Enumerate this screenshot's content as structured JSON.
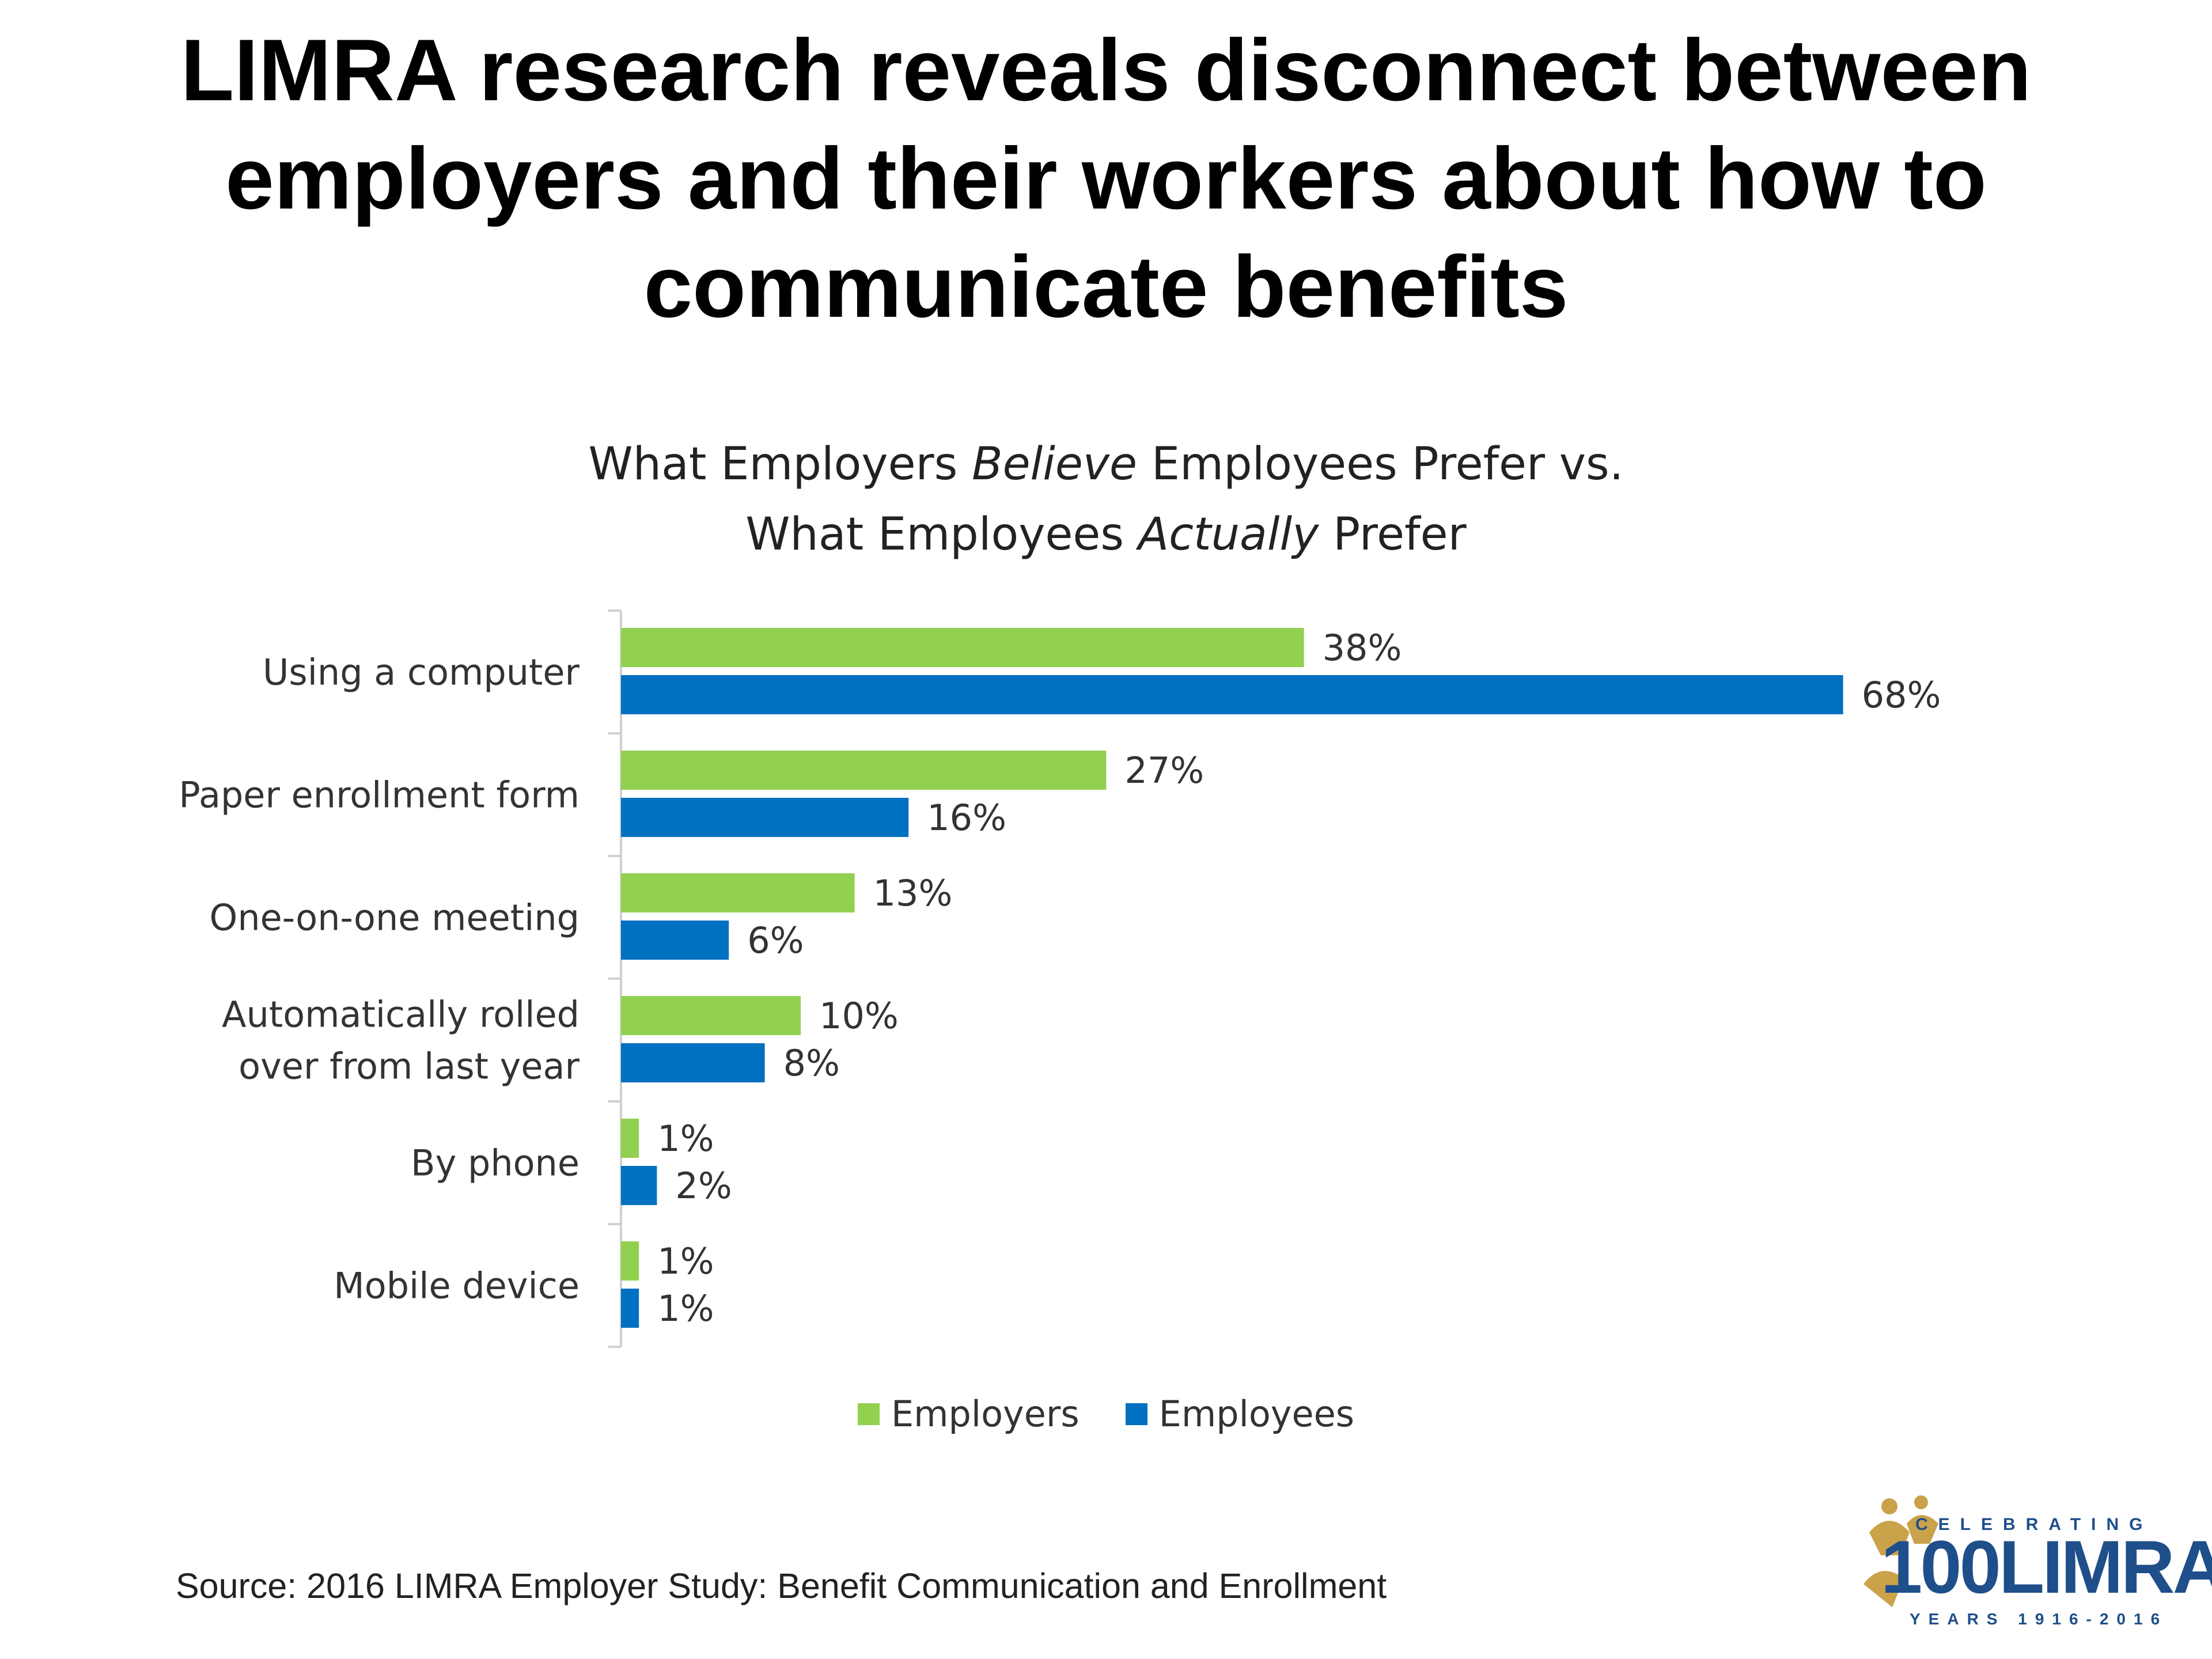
{
  "headline": {
    "line1": "LIMRA research reveals disconnect between",
    "line2": "employers and their workers about how to",
    "line3": "communicate benefits"
  },
  "chart_data": {
    "type": "bar",
    "orientation": "horizontal",
    "title": {
      "line1_a": "What Employers ",
      "line1_b": "Believe",
      "line1_c": " Employees Prefer vs.",
      "line2_a": "What Employees ",
      "line2_b": "Actually",
      "line2_c": " Prefer"
    },
    "categories": [
      [
        "Using a computer"
      ],
      [
        "Paper enrollment form"
      ],
      [
        "One-on-one meeting"
      ],
      [
        "Automatically rolled",
        "over from last year"
      ],
      [
        "By phone"
      ],
      [
        "Mobile device"
      ]
    ],
    "series": [
      {
        "name": "Employers",
        "color": "#92d050",
        "values": [
          38,
          27,
          13,
          10,
          1,
          1
        ],
        "labels": [
          "38%",
          "27%",
          "13%",
          "10%",
          "1%",
          "1%"
        ]
      },
      {
        "name": "Employees",
        "color": "#0070c0",
        "values": [
          68,
          16,
          6,
          8,
          2,
          1
        ],
        "labels": [
          "68%",
          "16%",
          "6%",
          "8%",
          "2%",
          "1%"
        ]
      }
    ],
    "unit": "%",
    "legend_position": "bottom",
    "grid": false
  },
  "source": "Source: 2016 LIMRA Employer Study: Benefit Communication and Enrollment",
  "logo": {
    "top_text": "CELEBRATING",
    "main_text": "100LIMRA",
    "bottom_text": "YEARS 1916-2016"
  }
}
